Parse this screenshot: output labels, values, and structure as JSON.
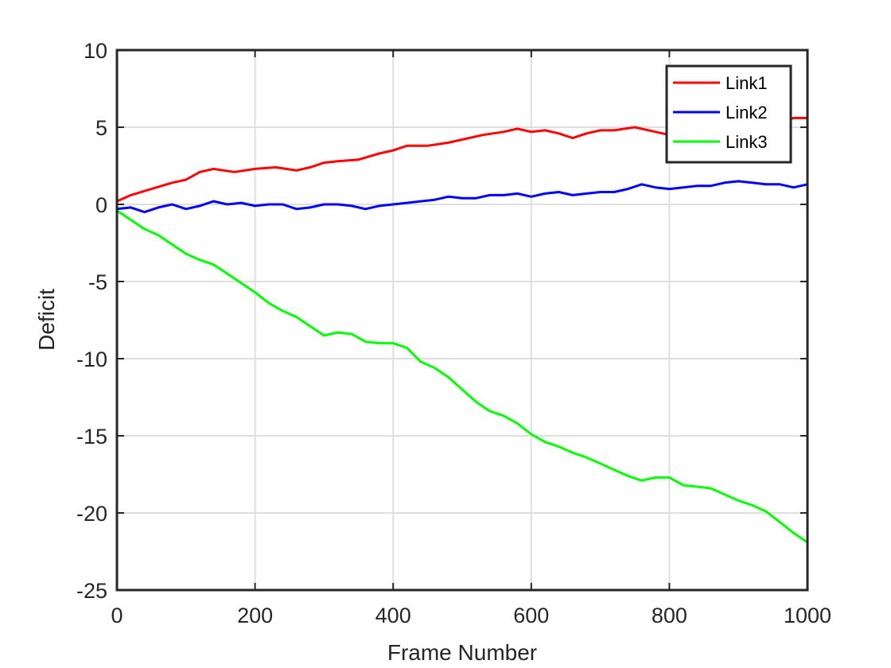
{
  "chart_data": {
    "type": "line",
    "xlabel": "Frame Number",
    "ylabel": "Deficit",
    "xlim": [
      0,
      1000
    ],
    "ylim": [
      -25,
      10
    ],
    "xticks": [
      0,
      200,
      400,
      600,
      800,
      1000
    ],
    "yticks": [
      -25,
      -20,
      -15,
      -10,
      -5,
      0,
      5,
      10
    ],
    "grid": true,
    "legend_position": "top-right",
    "series": [
      {
        "name": "Link1",
        "color": "#ff0000",
        "x": [
          0,
          20,
          50,
          80,
          100,
          120,
          140,
          170,
          200,
          230,
          260,
          280,
          300,
          320,
          350,
          380,
          400,
          420,
          450,
          480,
          500,
          530,
          560,
          580,
          600,
          620,
          640,
          660,
          680,
          700,
          720,
          750,
          780,
          800,
          830,
          860,
          880,
          900,
          930,
          960,
          980,
          1000
        ],
        "y": [
          0.2,
          0.6,
          1.0,
          1.4,
          1.6,
          2.1,
          2.3,
          2.1,
          2.3,
          2.4,
          2.2,
          2.4,
          2.7,
          2.8,
          2.9,
          3.3,
          3.5,
          3.8,
          3.8,
          4.0,
          4.2,
          4.5,
          4.7,
          4.9,
          4.7,
          4.8,
          4.6,
          4.3,
          4.6,
          4.8,
          4.8,
          5.0,
          4.7,
          4.5,
          4.7,
          5.0,
          5.2,
          5.3,
          5.5,
          5.3,
          5.6,
          5.6
        ]
      },
      {
        "name": "Link2",
        "color": "#0000ff",
        "x": [
          0,
          20,
          40,
          60,
          80,
          100,
          120,
          140,
          160,
          180,
          200,
          220,
          240,
          260,
          280,
          300,
          320,
          340,
          360,
          380,
          400,
          420,
          440,
          460,
          480,
          500,
          520,
          540,
          560,
          580,
          600,
          620,
          640,
          660,
          680,
          700,
          720,
          740,
          760,
          780,
          800,
          820,
          840,
          860,
          880,
          900,
          920,
          940,
          960,
          980,
          1000
        ],
        "y": [
          -0.3,
          -0.2,
          -0.5,
          -0.2,
          0.0,
          -0.3,
          -0.1,
          0.2,
          0.0,
          0.1,
          -0.1,
          0.0,
          0.0,
          -0.3,
          -0.2,
          0.0,
          0.0,
          -0.1,
          -0.3,
          -0.1,
          0.0,
          0.1,
          0.2,
          0.3,
          0.5,
          0.4,
          0.4,
          0.6,
          0.6,
          0.7,
          0.5,
          0.7,
          0.8,
          0.6,
          0.7,
          0.8,
          0.8,
          1.0,
          1.3,
          1.1,
          1.0,
          1.1,
          1.2,
          1.2,
          1.4,
          1.5,
          1.4,
          1.3,
          1.3,
          1.1,
          1.3
        ]
      },
      {
        "name": "Link3",
        "color": "#00ff00",
        "x": [
          0,
          20,
          40,
          60,
          80,
          100,
          120,
          140,
          160,
          180,
          200,
          220,
          240,
          260,
          280,
          300,
          320,
          340,
          360,
          380,
          400,
          420,
          440,
          460,
          480,
          500,
          520,
          540,
          560,
          580,
          600,
          620,
          640,
          660,
          680,
          700,
          720,
          740,
          760,
          780,
          800,
          820,
          840,
          860,
          880,
          900,
          920,
          940,
          960,
          980,
          1000
        ],
        "y": [
          -0.4,
          -1.0,
          -1.6,
          -2.0,
          -2.6,
          -3.2,
          -3.6,
          -3.9,
          -4.5,
          -5.1,
          -5.7,
          -6.4,
          -6.9,
          -7.3,
          -7.9,
          -8.5,
          -8.3,
          -8.4,
          -8.9,
          -9.0,
          -9.0,
          -9.3,
          -10.2,
          -10.6,
          -11.2,
          -12.0,
          -12.8,
          -13.4,
          -13.7,
          -14.2,
          -14.9,
          -15.4,
          -15.7,
          -16.1,
          -16.4,
          -16.8,
          -17.2,
          -17.6,
          -17.9,
          -17.7,
          -17.7,
          -18.2,
          -18.3,
          -18.4,
          -18.8,
          -19.2,
          -19.5,
          -19.9,
          -20.6,
          -21.3,
          -21.9
        ]
      }
    ]
  }
}
